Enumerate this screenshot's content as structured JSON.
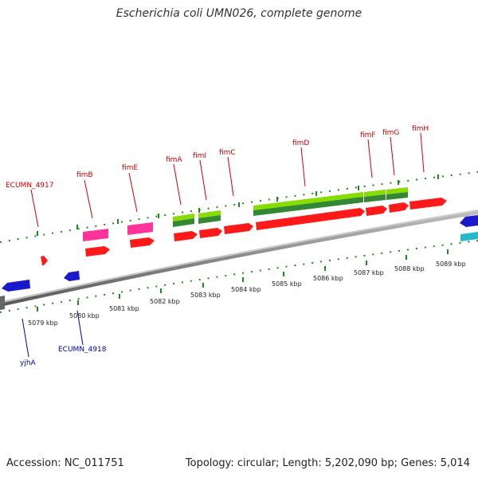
{
  "title": "Escherichia coli UMN026, complete genome",
  "footer": {
    "accession": "Accession: NC_011751",
    "summary": "Topology: circular; Length: 5,202,090 bp; Genes: 5,014"
  },
  "colors": {
    "forward_cds": "#ff1a1a",
    "reverse_cds": "#1a1acc",
    "pink_feature": "#ff3399",
    "green_light": "#88dd00",
    "green_dark": "#338833",
    "cyan_feature": "#22bbcc",
    "backbone": "#8a8a8a",
    "tick": "#1a8a1a",
    "label_red": "#cc0000",
    "label_blue": "#0000aa"
  },
  "scale_labels": [
    "5079 kbp",
    "5080 kbp",
    "5081 kbp",
    "5082 kbp",
    "5083 kbp",
    "5084 kbp",
    "5085 kbp",
    "5086 kbp",
    "5087 kbp",
    "5088 kbp",
    "5089 kbp"
  ],
  "gene_labels_top": [
    "ECUMN_4917",
    "fimB",
    "fimE",
    "fimA",
    "fimI",
    "fimC",
    "fimD",
    "fimF",
    "fimG",
    "fimH"
  ],
  "gene_labels_bottom": [
    "yjhA",
    "ECUMN_4918"
  ]
}
